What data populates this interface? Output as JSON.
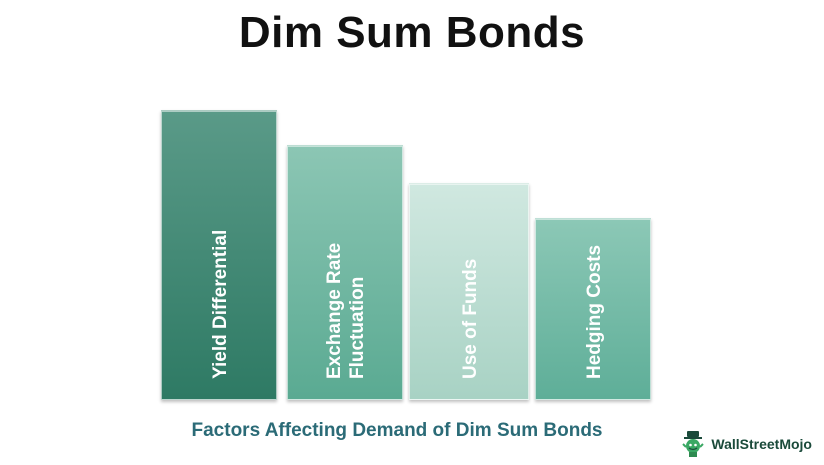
{
  "title": "Dim Sum Bonds",
  "bars": [
    {
      "lines": [
        "Yield Differential"
      ],
      "color_top": "#5a9a88",
      "color_bottom": "#2e7a64"
    },
    {
      "lines": [
        "Exchange Rate",
        "Fluctuation"
      ],
      "color_top": "#8cc6b4",
      "color_bottom": "#5aaa92"
    },
    {
      "lines": [
        "Use of Funds"
      ],
      "color_top": "#d0e8e0",
      "color_bottom": "#a8d2c4"
    },
    {
      "lines": [
        "Hedging Costs"
      ],
      "color_top": "#8cc8b6",
      "color_bottom": "#5eae98"
    }
  ],
  "subtitle": "Factors Affecting Demand of Dim Sum Bonds",
  "brand": {
    "name": "WallStreetMojo",
    "icon": "wallstreetmojo-logo-icon"
  }
}
